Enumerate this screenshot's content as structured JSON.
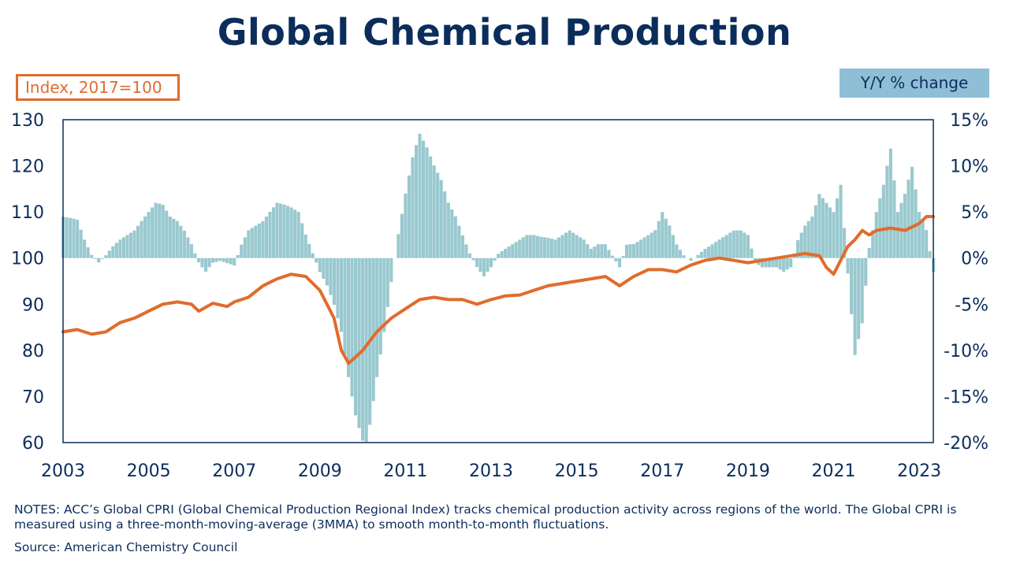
{
  "title": "Global Chemical Production",
  "left_axis_badge": "Index, 2017=100",
  "right_axis_badge": "Y/Y % change",
  "notes": "NOTES: ACC’s Global CPRI (Global Chemical Production Regional Index) tracks chemical production activity across regions of the world. The Global CPRI is measured using a three-month-moving-average (3MMA) to smooth month-to-month fluctuations.",
  "source": "Source:  American Chemistry Council",
  "colors": {
    "title": "#0b2d5b",
    "index_line": "#e06c2c",
    "yoy_bars": "#99c9cf",
    "axis": "#0b2d5b"
  },
  "chart_data": {
    "type": "bar+line",
    "x_range": [
      2003.0,
      2023.33
    ],
    "x_ticks": [
      "2003",
      "2005",
      "2007",
      "2009",
      "2011",
      "2013",
      "2015",
      "2017",
      "2019",
      "2021",
      "2023"
    ],
    "left_axis": {
      "ylim": [
        60,
        130
      ],
      "ticks": [
        "60",
        "70",
        "80",
        "90",
        "100",
        "110",
        "120",
        "130"
      ]
    },
    "right_axis": {
      "ylim": [
        -20,
        15
      ],
      "ticks": [
        "-20%",
        "-15%",
        "-10%",
        "-5%",
        "0%",
        "5%",
        "10%",
        "15%"
      ]
    },
    "series": [
      {
        "type": "bar",
        "axis": "right",
        "points": [
          [
            2003.0,
            4.5
          ],
          [
            2003.33,
            4.2
          ],
          [
            2003.5,
            2.0
          ],
          [
            2003.67,
            0.3
          ],
          [
            2003.83,
            -0.5
          ],
          [
            2004.0,
            0.3
          ],
          [
            2004.17,
            1.3
          ],
          [
            2004.33,
            2.0
          ],
          [
            2004.5,
            2.5
          ],
          [
            2004.67,
            3.0
          ],
          [
            2004.83,
            4.0
          ],
          [
            2005.0,
            5.0
          ],
          [
            2005.17,
            6.0
          ],
          [
            2005.33,
            5.8
          ],
          [
            2005.5,
            4.5
          ],
          [
            2005.67,
            4.0
          ],
          [
            2005.83,
            3.0
          ],
          [
            2006.0,
            1.5
          ],
          [
            2006.17,
            -0.5
          ],
          [
            2006.33,
            -1.5
          ],
          [
            2006.5,
            -0.5
          ],
          [
            2006.67,
            -0.3
          ],
          [
            2007.0,
            -0.8
          ],
          [
            2007.17,
            1.5
          ],
          [
            2007.33,
            3.0
          ],
          [
            2007.5,
            3.5
          ],
          [
            2007.67,
            4.0
          ],
          [
            2007.83,
            5.0
          ],
          [
            2008.0,
            6.0
          ],
          [
            2008.17,
            5.8
          ],
          [
            2008.33,
            5.5
          ],
          [
            2008.5,
            5.0
          ],
          [
            2008.67,
            2.5
          ],
          [
            2009.0,
            -1.5
          ],
          [
            2009.17,
            -3.0
          ],
          [
            2009.33,
            -5.0
          ],
          [
            2009.5,
            -8.0
          ],
          [
            2009.67,
            -13.0
          ],
          [
            2009.83,
            -17.0
          ],
          [
            2010.0,
            -19.8
          ],
          [
            2010.08,
            -20.0
          ],
          [
            2010.17,
            -18.0
          ],
          [
            2010.33,
            -13.0
          ],
          [
            2010.5,
            -8.0
          ],
          [
            2010.67,
            -2.5
          ],
          [
            2010.83,
            2.5
          ],
          [
            2011.0,
            7.0
          ],
          [
            2011.17,
            11.0
          ],
          [
            2011.33,
            13.5
          ],
          [
            2011.5,
            12.0
          ],
          [
            2011.67,
            10.0
          ],
          [
            2011.83,
            8.5
          ],
          [
            2012.0,
            6.0
          ],
          [
            2012.17,
            4.5
          ],
          [
            2012.33,
            2.5
          ],
          [
            2012.5,
            0.5
          ],
          [
            2012.67,
            -1.0
          ],
          [
            2012.83,
            -2.0
          ],
          [
            2013.0,
            -1.0
          ],
          [
            2013.17,
            0.5
          ],
          [
            2013.33,
            1.0
          ],
          [
            2013.5,
            1.5
          ],
          [
            2013.67,
            2.0
          ],
          [
            2013.83,
            2.5
          ],
          [
            2014.0,
            2.5
          ],
          [
            2014.17,
            2.3
          ],
          [
            2014.33,
            2.2
          ],
          [
            2014.5,
            2.0
          ],
          [
            2014.67,
            2.5
          ],
          [
            2014.83,
            3.0
          ],
          [
            2015.0,
            2.5
          ],
          [
            2015.17,
            2.0
          ],
          [
            2015.33,
            1.0
          ],
          [
            2015.5,
            1.5
          ],
          [
            2015.67,
            1.5
          ],
          [
            2016.0,
            -1.0
          ],
          [
            2016.17,
            1.5
          ],
          [
            2016.33,
            1.5
          ],
          [
            2016.5,
            2.0
          ],
          [
            2016.67,
            2.5
          ],
          [
            2016.83,
            3.0
          ],
          [
            2017.0,
            5.0
          ],
          [
            2017.17,
            3.5
          ],
          [
            2017.33,
            1.5
          ],
          [
            2017.5,
            0.3
          ],
          [
            2017.67,
            -0.3
          ],
          [
            2018.0,
            1.0
          ],
          [
            2018.17,
            1.5
          ],
          [
            2018.33,
            2.0
          ],
          [
            2018.5,
            2.5
          ],
          [
            2018.67,
            3.0
          ],
          [
            2018.83,
            3.0
          ],
          [
            2019.0,
            2.5
          ],
          [
            2019.17,
            -0.5
          ],
          [
            2019.33,
            -1.0
          ],
          [
            2019.5,
            -1.0
          ],
          [
            2019.67,
            -1.0
          ],
          [
            2019.83,
            -1.5
          ],
          [
            2020.0,
            -1.0
          ],
          [
            2020.17,
            2.0
          ],
          [
            2020.33,
            3.5
          ],
          [
            2020.5,
            4.5
          ],
          [
            2020.67,
            7.0
          ],
          [
            2020.83,
            6.0
          ],
          [
            2021.0,
            5.0
          ],
          [
            2021.17,
            8.0
          ],
          [
            2021.33,
            -1.5
          ],
          [
            2021.5,
            -10.5
          ],
          [
            2021.67,
            -7.0
          ],
          [
            2021.83,
            1.0
          ],
          [
            2022.0,
            5.0
          ],
          [
            2022.17,
            8.0
          ],
          [
            2022.33,
            12.0
          ],
          [
            2022.5,
            5.0
          ],
          [
            2022.67,
            7.0
          ],
          [
            2022.83,
            10.0
          ],
          [
            2023.0,
            5.0
          ],
          [
            2023.17,
            3.0
          ],
          [
            2023.33,
            -1.5
          ]
        ]
      },
      {
        "type": "line",
        "axis": "left",
        "points": [
          [
            2003.0,
            84
          ],
          [
            2003.33,
            84.5
          ],
          [
            2003.67,
            83.5
          ],
          [
            2004.0,
            84
          ],
          [
            2004.33,
            86
          ],
          [
            2004.67,
            87
          ],
          [
            2005.0,
            88.5
          ],
          [
            2005.33,
            90
          ],
          [
            2005.67,
            90.5
          ],
          [
            2006.0,
            90
          ],
          [
            2006.17,
            88.5
          ],
          [
            2006.5,
            90.2
          ],
          [
            2006.83,
            89.5
          ],
          [
            2007.0,
            90.5
          ],
          [
            2007.33,
            91.5
          ],
          [
            2007.67,
            94
          ],
          [
            2008.0,
            95.5
          ],
          [
            2008.33,
            96.5
          ],
          [
            2008.67,
            96
          ],
          [
            2009.0,
            93
          ],
          [
            2009.33,
            87
          ],
          [
            2009.5,
            80
          ],
          [
            2009.67,
            77.2
          ],
          [
            2009.83,
            78.5
          ],
          [
            2010.0,
            80
          ],
          [
            2010.33,
            84
          ],
          [
            2010.67,
            87
          ],
          [
            2011.0,
            89
          ],
          [
            2011.33,
            91
          ],
          [
            2011.67,
            91.5
          ],
          [
            2012.0,
            91
          ],
          [
            2012.33,
            91
          ],
          [
            2012.67,
            90
          ],
          [
            2013.0,
            91
          ],
          [
            2013.33,
            91.8
          ],
          [
            2013.67,
            92
          ],
          [
            2014.0,
            93
          ],
          [
            2014.33,
            94
          ],
          [
            2014.67,
            94.5
          ],
          [
            2015.0,
            95
          ],
          [
            2015.33,
            95.5
          ],
          [
            2015.67,
            96
          ],
          [
            2016.0,
            94
          ],
          [
            2016.33,
            96
          ],
          [
            2016.67,
            97.5
          ],
          [
            2017.0,
            97.5
          ],
          [
            2017.33,
            97
          ],
          [
            2017.67,
            98.5
          ],
          [
            2018.0,
            99.5
          ],
          [
            2018.33,
            100
          ],
          [
            2018.67,
            99.5
          ],
          [
            2019.0,
            99
          ],
          [
            2019.33,
            99.5
          ],
          [
            2019.67,
            100
          ],
          [
            2020.0,
            100.5
          ],
          [
            2020.33,
            101
          ],
          [
            2020.67,
            100.5
          ],
          [
            2020.83,
            98
          ],
          [
            2021.0,
            96.5
          ],
          [
            2021.33,
            102.5
          ],
          [
            2021.5,
            104
          ],
          [
            2021.67,
            106
          ],
          [
            2021.83,
            105
          ],
          [
            2022.0,
            106
          ],
          [
            2022.33,
            106.5
          ],
          [
            2022.67,
            106
          ],
          [
            2023.0,
            107.5
          ],
          [
            2023.17,
            109
          ],
          [
            2023.33,
            109
          ]
        ]
      }
    ]
  }
}
